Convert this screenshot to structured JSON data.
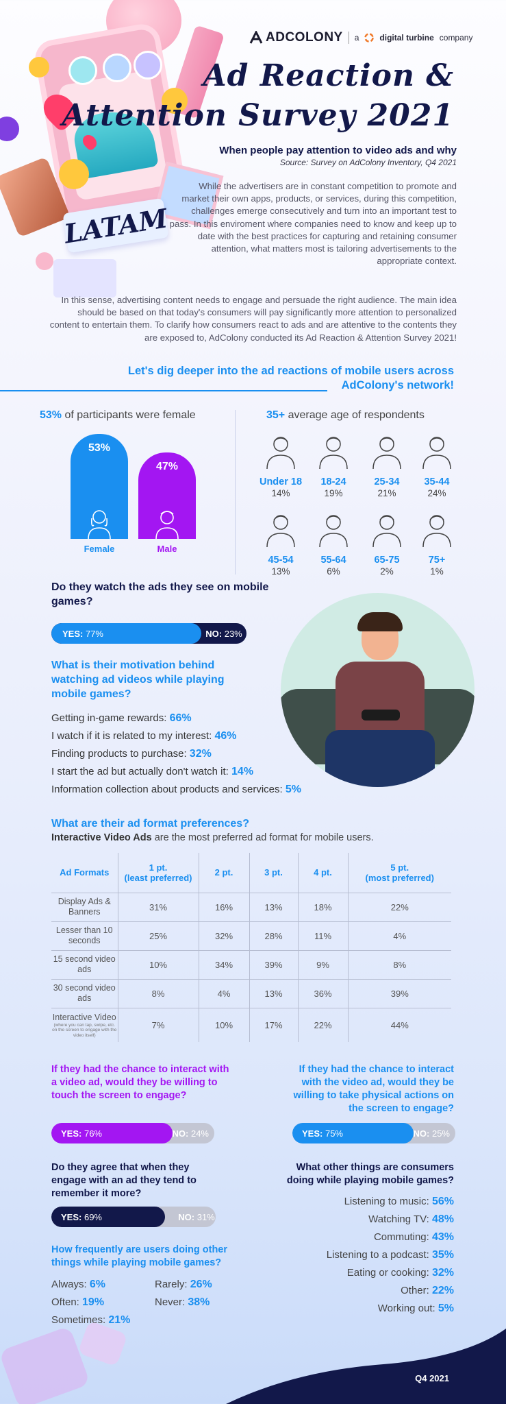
{
  "header": {
    "brand": "ADCOLONY",
    "partner_prefix": "a",
    "partner_name": "digital turbine",
    "partner_suffix": "company",
    "title_line1": "Ad Reaction &",
    "title_line2": "Attention Survey 2021",
    "subtitle": "When people pay attention to video ads and why",
    "source": "Source: Survey on AdColony Inventory, Q4 2021",
    "region_badge": "LATAM"
  },
  "intro": {
    "p1": "While the advertisers are in constant competition to promote and market their own apps, products, or services, during this competition, challenges emerge consecutively and turn into an important test to pass. In this enviroment where companies need to know and keep up to date with the best practices for capturing and retaining consumer attention, what matters most is tailoring advertisements to the appropriate context.",
    "p2": "In this sense, advertising content needs to engage and persuade the right audience. The main idea should be based on that today's consumers will pay significantly more attention to personalized content  to entertain them. To clarify how consumers react to ads and are attentive to the contents they are exposed to, AdColony conducted its Ad Reaction & Attention Survey 2021!",
    "dig_deeper": "Let's dig deeper into the ad reactions of mobile users across AdColony's network!"
  },
  "gender": {
    "headline_value": "53%",
    "headline_text": "of participants were female",
    "female_pct": "53%",
    "female_label": "Female",
    "female_value": 53,
    "male_pct": "47%",
    "male_label": "Male",
    "male_value": 47
  },
  "age": {
    "headline_value": "35+",
    "headline_text": "average age of respondents",
    "groups": [
      {
        "label": "Under 18",
        "value": "14%"
      },
      {
        "label": "18-24",
        "value": "19%"
      },
      {
        "label": "25-34",
        "value": "21%"
      },
      {
        "label": "35-44",
        "value": "24%"
      },
      {
        "label": "45-54",
        "value": "13%"
      },
      {
        "label": "55-64",
        "value": "6%"
      },
      {
        "label": "65-75",
        "value": "2%"
      },
      {
        "label": "75+",
        "value": "1%"
      }
    ]
  },
  "watch": {
    "question": "Do they watch the ads they see on mobile games?",
    "yes_label": "YES:",
    "yes_value": "77%",
    "no_label": "NO:",
    "no_value": "23%",
    "yes_fraction": 0.77
  },
  "motivation": {
    "question": "What is their motivation behind watching ad videos while playing mobile games?",
    "items": [
      {
        "text": "Getting in-game rewards:",
        "value": "66%"
      },
      {
        "text": "I watch if it is related to my interest:",
        "value": "46%"
      },
      {
        "text": "Finding products to purchase:",
        "value": "32%"
      },
      {
        "text": "I start the ad but actually don't watch it:",
        "value": "14%"
      },
      {
        "text": "Information collection about products and services:",
        "value": "5%"
      }
    ]
  },
  "formats": {
    "question": "What are their ad format preferences?",
    "lead_bold": "Interactive Video Ads",
    "lead_rest": "are the most preferred ad format for mobile users.",
    "columns": [
      "Ad Formats",
      "1 pt.",
      "(least preferred)",
      "2 pt.",
      "3 pt.",
      "4 pt.",
      "5 pt.",
      "(most preferred)"
    ],
    "rows": [
      {
        "label": "Display Ads & Banners",
        "note": "",
        "values": [
          "31%",
          "16%",
          "13%",
          "18%",
          "22%"
        ]
      },
      {
        "label": "Lesser than 10 seconds",
        "note": "",
        "values": [
          "25%",
          "32%",
          "28%",
          "11%",
          "4%"
        ]
      },
      {
        "label": "15 second video ads",
        "note": "",
        "values": [
          "10%",
          "34%",
          "39%",
          "9%",
          "8%"
        ]
      },
      {
        "label": "30 second video ads",
        "note": "",
        "values": [
          "8%",
          "4%",
          "13%",
          "36%",
          "39%"
        ]
      },
      {
        "label": "Interactive Video",
        "note": "(where you can tap, swipe, etc. on the screen to engage with the video itself)",
        "values": [
          "7%",
          "10%",
          "17%",
          "22%",
          "44%"
        ]
      }
    ]
  },
  "touch": {
    "question": "If they had the chance to interact with a video ad, would they be willing to touch the screen to engage?",
    "yes_label": "YES:",
    "yes_value": "76%",
    "no_label": "NO:",
    "no_value": "24%",
    "yes_fraction": 0.76
  },
  "physical": {
    "question": "If they had the chance to interact with the video ad, would they be willing to take physical actions on the screen to engage?",
    "yes_label": "YES:",
    "yes_value": "75%",
    "no_label": "NO:",
    "no_value": "25%",
    "yes_fraction": 0.75
  },
  "remember": {
    "question": "Do they agree that when they engage with an ad they tend to remember it more?",
    "yes_label": "YES:",
    "yes_value": "69%",
    "no_label": "NO:",
    "no_value": "31%",
    "yes_fraction": 0.69
  },
  "frequency": {
    "question": "How frequently are users doing other things while playing mobile games?",
    "items": [
      {
        "text": "Always:",
        "value": "6%"
      },
      {
        "text": "Rarely:",
        "value": "26%"
      },
      {
        "text": "Often:",
        "value": "19%"
      },
      {
        "text": "Never:",
        "value": "38%"
      },
      {
        "text": "Sometimes:",
        "value": "21%"
      }
    ]
  },
  "other_things": {
    "question": "What other things are consumers doing while playing mobile games?",
    "items": [
      {
        "text": "Listening to music:",
        "value": "56%"
      },
      {
        "text": "Watching TV:",
        "value": "48%"
      },
      {
        "text": "Commuting:",
        "value": "43%"
      },
      {
        "text": "Listening to a podcast:",
        "value": "35%"
      },
      {
        "text": "Eating or cooking:",
        "value": "32%"
      },
      {
        "text": "Other:",
        "value": "22%"
      },
      {
        "text": "Working out:",
        "value": "5%"
      }
    ]
  },
  "footer": {
    "period": "Q4 2021"
  },
  "colors": {
    "blue": "#1a8ff0",
    "navy": "#12184a",
    "purple": "#a316f2",
    "grey_bar": "#c3c6d3"
  }
}
